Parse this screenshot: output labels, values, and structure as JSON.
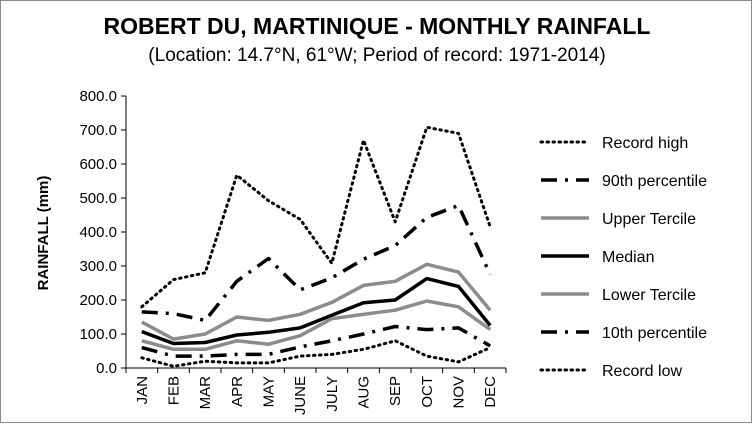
{
  "chart_data": {
    "type": "line",
    "title": "ROBERT DU, MARTINIQUE - MONTHLY RAINFALL",
    "subtitle": "(Location: 14.7°N, 61°W; Period of record: 1971-2014)",
    "xlabel": "",
    "ylabel": "RAINFALL (mm)",
    "ylim": [
      0,
      800
    ],
    "yticks": [
      "0.0",
      "100.0",
      "200.0",
      "300.0",
      "400.0",
      "500.0",
      "600.0",
      "700.0",
      "800.0"
    ],
    "grid": false,
    "legend_position": "right",
    "categories": [
      "JAN",
      "FEB",
      "MAR",
      "APR",
      "MAY",
      "JUNE",
      "JULY",
      "AUG",
      "SEP",
      "OCT",
      "NOV",
      "DEC"
    ],
    "series": [
      {
        "name": "Record high",
        "style": "dotted",
        "color": "#000000",
        "values": [
          180,
          260,
          280,
          567,
          492,
          437,
          308,
          670,
          430,
          708,
          690,
          415
        ]
      },
      {
        "name": "90th percentile",
        "style": "dashdot",
        "color": "#000000",
        "values": [
          165,
          160,
          140,
          255,
          322,
          230,
          265,
          320,
          360,
          443,
          478,
          275
        ]
      },
      {
        "name": "Upper Tercile",
        "style": "solid",
        "color": "#8c8c8c",
        "values": [
          135,
          85,
          100,
          150,
          140,
          158,
          193,
          243,
          255,
          305,
          282,
          170
        ]
      },
      {
        "name": "Median",
        "style": "solid",
        "color": "#000000",
        "values": [
          107,
          72,
          75,
          97,
          105,
          118,
          155,
          192,
          200,
          263,
          240,
          125
        ]
      },
      {
        "name": "Lower Tercile",
        "style": "solid",
        "color": "#8c8c8c",
        "values": [
          80,
          55,
          55,
          80,
          70,
          95,
          145,
          158,
          170,
          197,
          180,
          113
        ]
      },
      {
        "name": "10th percentile",
        "style": "dashdot",
        "color": "#000000",
        "values": [
          60,
          35,
          35,
          40,
          40,
          62,
          80,
          100,
          122,
          113,
          118,
          65
        ]
      },
      {
        "name": "Record low",
        "style": "dotted",
        "color": "#000000",
        "values": [
          30,
          5,
          20,
          15,
          15,
          35,
          40,
          55,
          80,
          35,
          18,
          60
        ]
      }
    ]
  }
}
